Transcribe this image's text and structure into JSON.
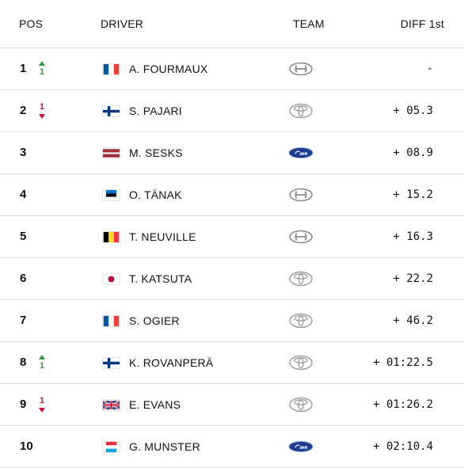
{
  "headers": {
    "pos": "POS",
    "driver": "DRIVER",
    "team": "TEAM",
    "diff": "DIFF 1st"
  },
  "rows": [
    {
      "pos": "1",
      "change": {
        "dir": "up",
        "value": "1"
      },
      "flag": "FR",
      "driver": "A. FOURMAUX",
      "team": "hyundai-logo-icon",
      "diff": "-"
    },
    {
      "pos": "2",
      "change": {
        "dir": "down",
        "value": "1"
      },
      "flag": "FI",
      "driver": "S. PAJARI",
      "team": "toyota-logo-icon",
      "diff": "+ 05.3"
    },
    {
      "pos": "3",
      "change": null,
      "flag": "LV",
      "driver": "M. SESKS",
      "team": "ford-logo-icon",
      "diff": "+ 08.9"
    },
    {
      "pos": "4",
      "change": null,
      "flag": "EE",
      "driver": "O. TÄNAK",
      "team": "hyundai-logo-icon",
      "diff": "+ 15.2"
    },
    {
      "pos": "5",
      "change": null,
      "flag": "BE",
      "driver": "T. NEUVILLE",
      "team": "hyundai-logo-icon",
      "diff": "+ 16.3"
    },
    {
      "pos": "6",
      "change": null,
      "flag": "JP",
      "driver": "T. KATSUTA",
      "team": "toyota-logo-icon",
      "diff": "+ 22.2"
    },
    {
      "pos": "7",
      "change": null,
      "flag": "FR",
      "driver": "S. OGIER",
      "team": "toyota-logo-icon",
      "diff": "+ 46.2"
    },
    {
      "pos": "8",
      "change": {
        "dir": "up",
        "value": "1"
      },
      "flag": "FI",
      "driver": "K. ROVANPERÄ",
      "team": "toyota-logo-icon",
      "diff": "+ 01:22.5"
    },
    {
      "pos": "9",
      "change": {
        "dir": "down",
        "value": "1"
      },
      "flag": "GB",
      "driver": "E. EVANS",
      "team": "toyota-logo-icon",
      "diff": "+ 01:26.2"
    },
    {
      "pos": "10",
      "change": null,
      "flag": "LU",
      "driver": "G. MUNSTER",
      "team": "ford-logo-icon",
      "diff": "+ 02:10.4"
    }
  ],
  "colors": {
    "up": "#2e9b3c",
    "down": "#d0103a",
    "divider": "#dcdcdc"
  }
}
